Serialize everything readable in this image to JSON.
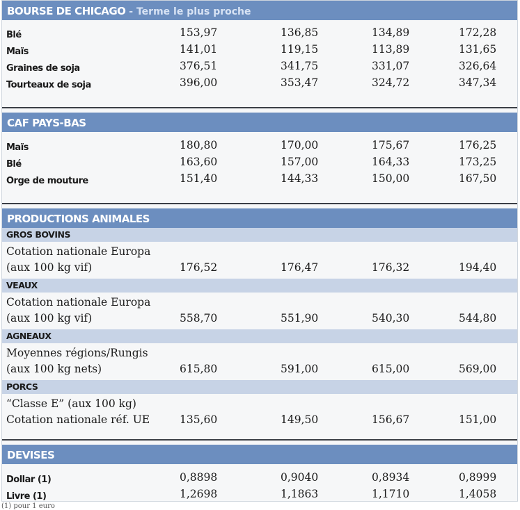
{
  "chicago": {
    "title": "BOURSE DE CHICAGO",
    "subtitle": " - Terme le plus proche",
    "rows": [
      {
        "label": "Blé",
        "v1": "153,97",
        "v2": "136,85",
        "v3": "134,89",
        "v4": "172,28"
      },
      {
        "label": "Maïs",
        "v1": "141,01",
        "v2": "119,15",
        "v3": "113,89",
        "v4": "131,65"
      },
      {
        "label": "Graines de soja",
        "v1": "376,51",
        "v2": "341,75",
        "v3": "331,07",
        "v4": "326,64"
      },
      {
        "label": "Tourteaux de soja",
        "v1": "396,00",
        "v2": "353,47",
        "v3": "324,72",
        "v4": "347,34"
      }
    ]
  },
  "caf": {
    "title": "CAF PAYS-BAS",
    "rows": [
      {
        "label": "Maïs",
        "v1": "180,80",
        "v2": "170,00",
        "v3": "175,67",
        "v4": "176,25"
      },
      {
        "label": "Blé",
        "v1": "163,60",
        "v2": "157,00",
        "v3": "164,33",
        "v4": "173,25"
      },
      {
        "label": "Orge de mouture",
        "v1": "151,40",
        "v2": "144,33",
        "v3": "150,00",
        "v4": "167,50"
      }
    ]
  },
  "animal": {
    "title": "PRODUCTIONS ANIMALES",
    "groups": [
      {
        "title": "GROS BOVINS",
        "line1": "Cotation nationale Europa",
        "line2": "(aux 100 kg vif)",
        "v1": "176,52",
        "v2": "176,47",
        "v3": "176,32",
        "v4": "194,40"
      },
      {
        "title": "VEAUX",
        "line1": "Cotation nationale Europa",
        "line2": "(aux 100 kg vif)",
        "v1": "558,70",
        "v2": "551,90",
        "v3": "540,30",
        "v4": "544,80"
      },
      {
        "title": "AGNEAUX",
        "line1": "Moyennes régions/Rungis",
        "line2": "(aux 100 kg nets)",
        "v1": "615,80",
        "v2": "591,00",
        "v3": "615,00",
        "v4": "569,00"
      },
      {
        "title": "PORCS",
        "line1": "“Classe E” (aux 100 kg)",
        "line2": "Cotation nationale réf. UE",
        "v1": "135,60",
        "v2": "149,50",
        "v3": "156,67",
        "v4": "151,00"
      }
    ]
  },
  "devises": {
    "title": "DEVISES",
    "rows": [
      {
        "label": "Dollar (1)",
        "v1": "0,8898",
        "v2": "0,9040",
        "v3": "0,8934",
        "v4": "0,8999"
      },
      {
        "label": "Livre (1)",
        "v1": "1,2698",
        "v2": "1,1863",
        "v3": "1,1710",
        "v4": "1,4058"
      }
    ]
  },
  "footnote": "(1) pour 1 euro",
  "colors": {
    "section_header": "#6c8ebf",
    "sub_header": "#c7d3e6",
    "background": "#f6f7f8"
  }
}
